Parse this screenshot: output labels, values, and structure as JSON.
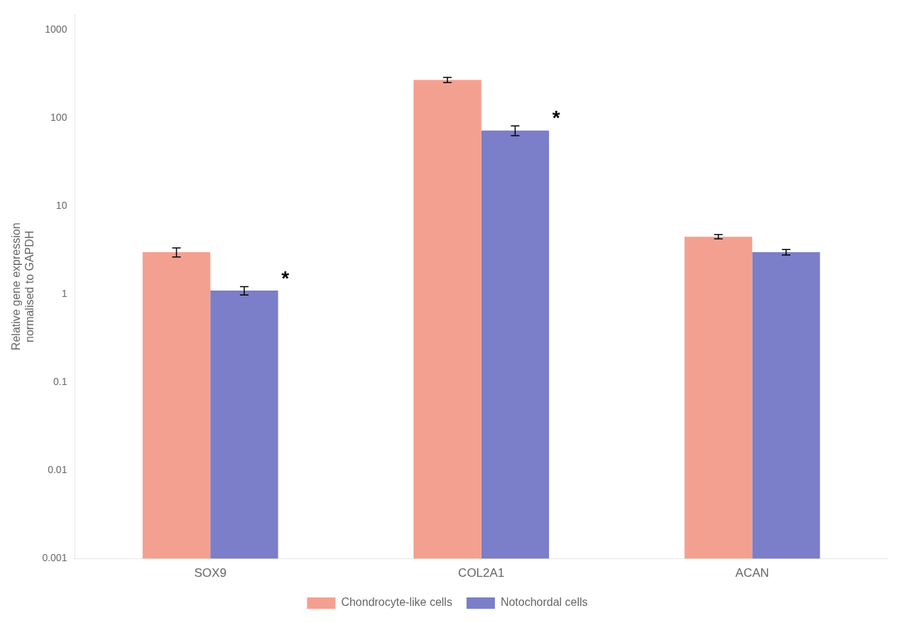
{
  "chart_data": {
    "type": "bar",
    "y_label": "Relative gene expression\nnormalised to GAPDH",
    "categories": [
      "SOX9",
      "COL2A1",
      "ACAN"
    ],
    "series": [
      {
        "name": "Chondrocyte-like cells",
        "color": "#F4A090",
        "values": [
          3.0,
          270.0,
          4.5
        ],
        "errors": [
          0.35,
          18.0,
          0.25
        ]
      },
      {
        "name": "Notochordal cells",
        "color": "#7B7EC8",
        "values": [
          1.1,
          72.0,
          3.0
        ],
        "errors": [
          0.12,
          9.0,
          0.22
        ]
      }
    ],
    "annotations": [
      {
        "text": "*",
        "category": "SOX9",
        "series": "Notochordal cells"
      },
      {
        "text": "*",
        "category": "COL2A1",
        "series": "Notochordal cells"
      }
    ],
    "log": "y",
    "ylim": [
      0.001,
      1500
    ],
    "yticks": [
      0.001,
      0.01,
      0.1,
      1,
      10,
      100,
      1000
    ],
    "grid": false,
    "legend": "bottom"
  }
}
